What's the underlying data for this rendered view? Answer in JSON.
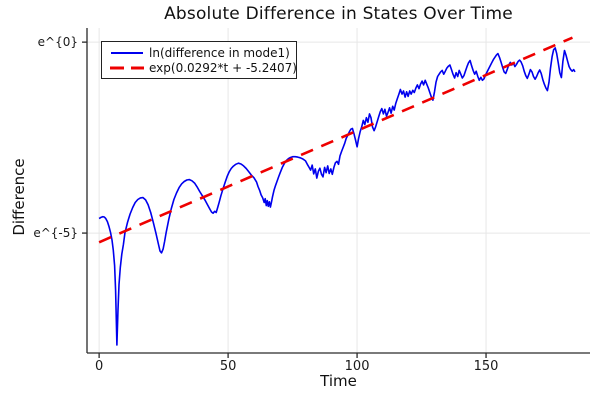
{
  "title": "Absolute Difference in States Over Time",
  "axes": {
    "x": {
      "label": "Time",
      "ticks": [
        0,
        50,
        100,
        150
      ],
      "range": [
        -4.7,
        190.3
      ]
    },
    "y": {
      "label": "Difference",
      "ticks": [
        {
          "value": 0,
          "label": "e^{0}"
        },
        {
          "value": -5,
          "label": "e^{-5}"
        }
      ],
      "range_ln": [
        -8.14,
        0.37
      ],
      "scale": "log"
    }
  },
  "legend": {
    "entries": [
      {
        "label": "ln(difference in mode1)",
        "color": "#0000ee",
        "style": "solid"
      },
      {
        "label": "exp(0.0292*t + -5.2407)",
        "color": "#ee0000",
        "style": "dashed"
      }
    ]
  },
  "colors": {
    "blue_series": "#0000ee",
    "red_fit": "#ee0000",
    "grid": "#e7e7e7",
    "axis": "#2a2a2a",
    "text": "#111111",
    "background": "#ffffff"
  },
  "chart_data": {
    "type": "line",
    "title": "Absolute Difference in States Over Time",
    "xlabel": "Time",
    "ylabel": "Difference",
    "y_axis_note": "natural-log scale; tick labels rendered literally as e^{0} and e^{-5}",
    "xlim": [
      -4.7,
      190.3
    ],
    "ylim_ln": [
      -8.14,
      0.37
    ],
    "grid": true,
    "legend_position": "top-left",
    "series": [
      {
        "name": "ln(difference in mode1)",
        "color": "#0000ee",
        "style": "solid",
        "points_t_lnv": [
          [
            0,
            -4.62
          ],
          [
            0.7,
            -4.59
          ],
          [
            1.4,
            -4.57
          ],
          [
            2,
            -4.58
          ],
          [
            2.6,
            -4.62
          ],
          [
            3.2,
            -4.7
          ],
          [
            3.8,
            -4.82
          ],
          [
            4.4,
            -4.98
          ],
          [
            5,
            -5.18
          ],
          [
            5.5,
            -5.45
          ],
          [
            6,
            -5.85
          ],
          [
            6.4,
            -6.5
          ],
          [
            6.9,
            -7.93
          ],
          [
            7.3,
            -7.0
          ],
          [
            7.7,
            -6.35
          ],
          [
            8.2,
            -5.9
          ],
          [
            8.8,
            -5.55
          ],
          [
            9.4,
            -5.3
          ],
          [
            10,
            -5.0
          ],
          [
            11,
            -4.72
          ],
          [
            12,
            -4.5
          ],
          [
            13,
            -4.33
          ],
          [
            14,
            -4.2
          ],
          [
            15,
            -4.12
          ],
          [
            16,
            -4.08
          ],
          [
            17,
            -4.07
          ],
          [
            18,
            -4.13
          ],
          [
            19,
            -4.26
          ],
          [
            20,
            -4.46
          ],
          [
            21,
            -4.72
          ],
          [
            22,
            -5.0
          ],
          [
            23,
            -5.3
          ],
          [
            23.6,
            -5.47
          ],
          [
            24.2,
            -5.52
          ],
          [
            24.8,
            -5.42
          ],
          [
            25.4,
            -5.22
          ],
          [
            26,
            -4.98
          ],
          [
            27,
            -4.64
          ],
          [
            28,
            -4.36
          ],
          [
            29,
            -4.12
          ],
          [
            30,
            -3.95
          ],
          [
            31,
            -3.81
          ],
          [
            32,
            -3.71
          ],
          [
            33,
            -3.65
          ],
          [
            34,
            -3.61
          ],
          [
            35,
            -3.6
          ],
          [
            36,
            -3.63
          ],
          [
            37,
            -3.69
          ],
          [
            38,
            -3.79
          ],
          [
            39,
            -3.91
          ],
          [
            40,
            -4.02
          ],
          [
            41,
            -4.13
          ],
          [
            42,
            -4.26
          ],
          [
            43,
            -4.38
          ],
          [
            43.6,
            -4.45
          ],
          [
            44.2,
            -4.48
          ],
          [
            44.8,
            -4.43
          ],
          [
            45.4,
            -4.46
          ],
          [
            46,
            -4.32
          ],
          [
            46.6,
            -4.18
          ],
          [
            47.2,
            -4.02
          ],
          [
            48,
            -3.85
          ],
          [
            48.8,
            -3.68
          ],
          [
            49.6,
            -3.52
          ],
          [
            50.4,
            -3.4
          ],
          [
            51.2,
            -3.31
          ],
          [
            52,
            -3.25
          ],
          [
            53,
            -3.2
          ],
          [
            54,
            -3.17
          ],
          [
            55,
            -3.19
          ],
          [
            56,
            -3.24
          ],
          [
            57,
            -3.31
          ],
          [
            58,
            -3.39
          ],
          [
            59,
            -3.48
          ],
          [
            60,
            -3.55
          ],
          [
            61,
            -3.66
          ],
          [
            61.6,
            -3.78
          ],
          [
            62.2,
            -3.88
          ],
          [
            62.8,
            -4.0
          ],
          [
            63.4,
            -4.08
          ],
          [
            64,
            -4.2
          ],
          [
            64.4,
            -4.1
          ],
          [
            64.8,
            -4.28
          ],
          [
            65.2,
            -4.15
          ],
          [
            65.6,
            -4.3
          ],
          [
            66,
            -4.18
          ],
          [
            66.4,
            -4.32
          ],
          [
            66.8,
            -4.2
          ],
          [
            67.2,
            -4.05
          ],
          [
            67.8,
            -3.88
          ],
          [
            68.4,
            -3.75
          ],
          [
            69,
            -3.64
          ],
          [
            69.6,
            -3.52
          ],
          [
            70.2,
            -3.42
          ],
          [
            71,
            -3.28
          ],
          [
            71.8,
            -3.18
          ],
          [
            72.6,
            -3.1
          ],
          [
            73.4,
            -3.05
          ],
          [
            74.2,
            -3.02
          ],
          [
            75,
            -3.0
          ],
          [
            76,
            -3.0
          ],
          [
            77,
            -3.01
          ],
          [
            78,
            -3.03
          ],
          [
            79,
            -3.06
          ],
          [
            80,
            -3.11
          ],
          [
            80.7,
            -3.2
          ],
          [
            81.4,
            -3.28
          ],
          [
            82,
            -3.35
          ],
          [
            82.6,
            -3.22
          ],
          [
            83.2,
            -3.45
          ],
          [
            83.8,
            -3.32
          ],
          [
            84.4,
            -3.56
          ],
          [
            85,
            -3.38
          ],
          [
            85.6,
            -3.3
          ],
          [
            86.2,
            -3.46
          ],
          [
            86.8,
            -3.53
          ],
          [
            87.4,
            -3.28
          ],
          [
            88,
            -3.42
          ],
          [
            88.6,
            -3.24
          ],
          [
            89.2,
            -3.44
          ],
          [
            89.8,
            -3.32
          ],
          [
            90.4,
            -3.46
          ],
          [
            91,
            -3.28
          ],
          [
            91.6,
            -3.16
          ],
          [
            92.2,
            -3.12
          ],
          [
            92.8,
            -3.2
          ],
          [
            93.4,
            -2.98
          ],
          [
            94,
            -2.86
          ],
          [
            94.6,
            -2.76
          ],
          [
            95.2,
            -2.65
          ],
          [
            95.8,
            -2.52
          ],
          [
            96.4,
            -2.44
          ],
          [
            97,
            -2.35
          ],
          [
            97.6,
            -2.28
          ],
          [
            98.2,
            -2.26
          ],
          [
            98.8,
            -2.4
          ],
          [
            99.4,
            -2.56
          ],
          [
            100,
            -2.74
          ],
          [
            100.6,
            -2.52
          ],
          [
            101.2,
            -2.34
          ],
          [
            101.8,
            -2.22
          ],
          [
            102.4,
            -2.05
          ],
          [
            103,
            -2.16
          ],
          [
            103.6,
            -1.98
          ],
          [
            104.2,
            -2.1
          ],
          [
            104.8,
            -1.88
          ],
          [
            105.4,
            -1.98
          ],
          [
            106,
            -2.22
          ],
          [
            106.6,
            -2.32
          ],
          [
            107.2,
            -2.22
          ],
          [
            107.8,
            -2.08
          ],
          [
            108.4,
            -1.95
          ],
          [
            109,
            -1.82
          ],
          [
            109.6,
            -1.74
          ],
          [
            110.2,
            -1.88
          ],
          [
            110.8,
            -1.76
          ],
          [
            111.4,
            -1.94
          ],
          [
            112,
            -1.84
          ],
          [
            112.6,
            -1.72
          ],
          [
            113.2,
            -1.86
          ],
          [
            113.8,
            -1.68
          ],
          [
            114.4,
            -1.78
          ],
          [
            115,
            -1.6
          ],
          [
            115.6,
            -1.48
          ],
          [
            116.2,
            -1.36
          ],
          [
            116.8,
            -1.24
          ],
          [
            117.4,
            -1.36
          ],
          [
            118,
            -1.28
          ],
          [
            118.6,
            -1.44
          ],
          [
            119.2,
            -1.3
          ],
          [
            119.8,
            -1.42
          ],
          [
            120.4,
            -1.28
          ],
          [
            121,
            -1.36
          ],
          [
            121.6,
            -1.26
          ],
          [
            122.2,
            -1.32
          ],
          [
            122.8,
            -1.2
          ],
          [
            123.4,
            -1.12
          ],
          [
            124,
            -1.22
          ],
          [
            124.6,
            -1.1
          ],
          [
            125.2,
            -1.02
          ],
          [
            125.8,
            -1.12
          ],
          [
            126.4,
            -1.0
          ],
          [
            127,
            -1.1
          ],
          [
            127.6,
            -1.2
          ],
          [
            128.2,
            -1.32
          ],
          [
            128.8,
            -1.44
          ],
          [
            129.4,
            -1.52
          ],
          [
            130,
            -1.3
          ],
          [
            130.6,
            -1.05
          ],
          [
            131.2,
            -0.9
          ],
          [
            131.8,
            -0.84
          ],
          [
            132.4,
            -0.78
          ],
          [
            133,
            -0.74
          ],
          [
            133.6,
            -0.84
          ],
          [
            134.2,
            -0.76
          ],
          [
            134.8,
            -0.68
          ],
          [
            135.4,
            -0.63
          ],
          [
            136,
            -0.6
          ],
          [
            136.6,
            -0.72
          ],
          [
            137.2,
            -0.84
          ],
          [
            137.8,
            -0.94
          ],
          [
            138.4,
            -0.8
          ],
          [
            139,
            -0.9
          ],
          [
            139.6,
            -0.74
          ],
          [
            140.2,
            -0.84
          ],
          [
            140.8,
            -0.94
          ],
          [
            141.4,
            -0.88
          ],
          [
            142,
            -0.76
          ],
          [
            142.6,
            -0.64
          ],
          [
            143.2,
            -0.54
          ],
          [
            143.8,
            -0.48
          ],
          [
            144.4,
            -0.62
          ],
          [
            145,
            -0.74
          ],
          [
            145.6,
            -0.84
          ],
          [
            146.2,
            -0.76
          ],
          [
            146.8,
            -0.9
          ],
          [
            147.4,
            -1.0
          ],
          [
            148,
            -0.92
          ],
          [
            148.6,
            -1.0
          ],
          [
            149.2,
            -0.96
          ],
          [
            149.8,
            -0.86
          ],
          [
            150.4,
            -0.78
          ],
          [
            151,
            -0.7
          ],
          [
            151.6,
            -0.62
          ],
          [
            152.2,
            -0.54
          ],
          [
            152.8,
            -0.46
          ],
          [
            153.4,
            -0.4
          ],
          [
            154,
            -0.34
          ],
          [
            154.6,
            -0.3
          ],
          [
            155.2,
            -0.4
          ],
          [
            155.8,
            -0.52
          ],
          [
            156.4,
            -0.66
          ],
          [
            157,
            -0.78
          ],
          [
            157.6,
            -0.82
          ],
          [
            158.2,
            -0.72
          ],
          [
            158.8,
            -0.6
          ],
          [
            159.4,
            -0.53
          ],
          [
            160,
            -0.6
          ],
          [
            160.6,
            -0.55
          ],
          [
            161.2,
            -0.64
          ],
          [
            161.8,
            -0.58
          ],
          [
            162.4,
            -0.51
          ],
          [
            163,
            -0.47
          ],
          [
            163.6,
            -0.52
          ],
          [
            164.2,
            -0.62
          ],
          [
            164.8,
            -0.76
          ],
          [
            165.4,
            -0.88
          ],
          [
            166,
            -0.95
          ],
          [
            166.6,
            -0.84
          ],
          [
            167.2,
            -0.72
          ],
          [
            167.8,
            -0.78
          ],
          [
            168.4,
            -0.9
          ],
          [
            169,
            -0.97
          ],
          [
            169.6,
            -0.9
          ],
          [
            170.2,
            -0.8
          ],
          [
            170.8,
            -0.73
          ],
          [
            171.4,
            -0.82
          ],
          [
            172,
            -0.98
          ],
          [
            172.6,
            -1.1
          ],
          [
            173.2,
            -1.2
          ],
          [
            173.8,
            -1.27
          ],
          [
            174.4,
            -1.05
          ],
          [
            175,
            -0.68
          ],
          [
            175.6,
            -0.38
          ],
          [
            176.2,
            -0.2
          ],
          [
            176.8,
            -0.15
          ],
          [
            177.4,
            -0.3
          ],
          [
            178,
            -0.55
          ],
          [
            178.6,
            -0.8
          ],
          [
            179.2,
            -0.93
          ],
          [
            179.8,
            -0.5
          ],
          [
            180.4,
            -0.22
          ],
          [
            181,
            -0.34
          ],
          [
            181.6,
            -0.5
          ],
          [
            182.2,
            -0.64
          ],
          [
            182.8,
            -0.72
          ],
          [
            183.4,
            -0.76
          ],
          [
            184,
            -0.72
          ],
          [
            184.5,
            -0.78
          ]
        ]
      },
      {
        "name": "exp(0.0292*t + -5.2407)",
        "color": "#ee0000",
        "style": "dashed",
        "fit": {
          "slope": 0.0292,
          "intercept": -5.2407,
          "t_start": 0,
          "t_end": 183.5
        }
      }
    ]
  }
}
